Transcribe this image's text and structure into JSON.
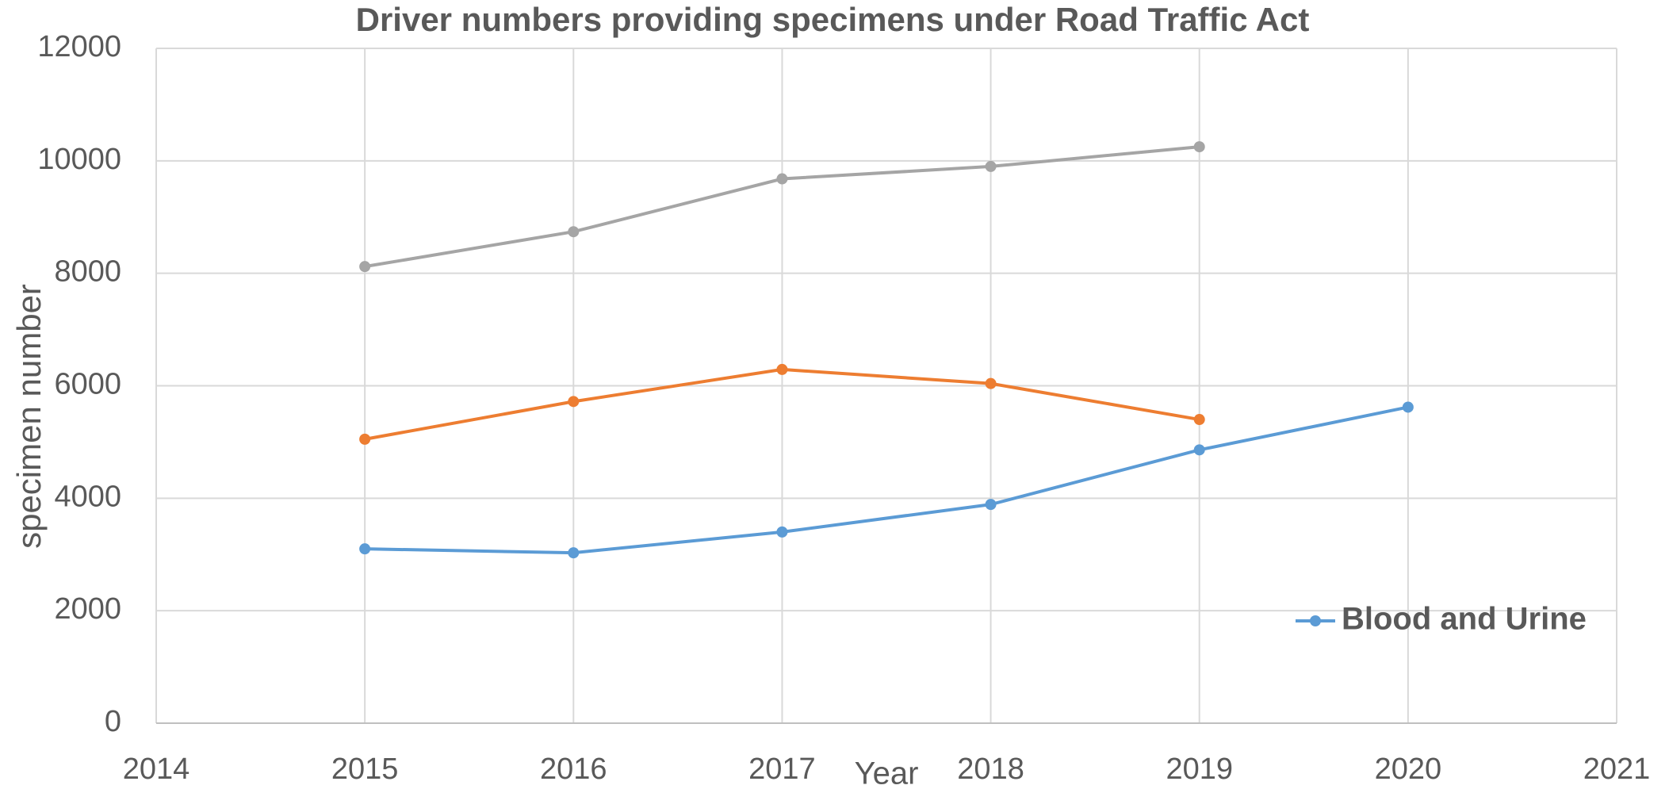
{
  "chart_data": {
    "type": "line",
    "title": "Driver numbers providing specimens under Road Traffic Act",
    "x_label": "Year",
    "y_label": "specimen number",
    "x": [
      2015,
      2016,
      2017,
      2018,
      2019,
      2020
    ],
    "series": [
      {
        "name": "Blood and Urine",
        "color": "#5b9bd5",
        "values": [
          3100,
          3030,
          3400,
          3890,
          4860,
          5620
        ]
      },
      {
        "color": "#ed7d31",
        "values": [
          5050,
          5720,
          6290,
          6040,
          5400,
          null
        ]
      },
      {
        "color": "#a5a5a5",
        "values": [
          8120,
          8740,
          9680,
          9900,
          10250,
          null
        ]
      }
    ],
    "xlim": [
      2014,
      2021
    ],
    "xticks": [
      2014,
      2015,
      2016,
      2017,
      2018,
      2019,
      2020,
      2021
    ],
    "ylim": [
      0,
      12000
    ],
    "yticks": [
      0,
      2000,
      4000,
      6000,
      8000,
      10000,
      12000
    ],
    "grid": true,
    "legend": "lower right"
  }
}
